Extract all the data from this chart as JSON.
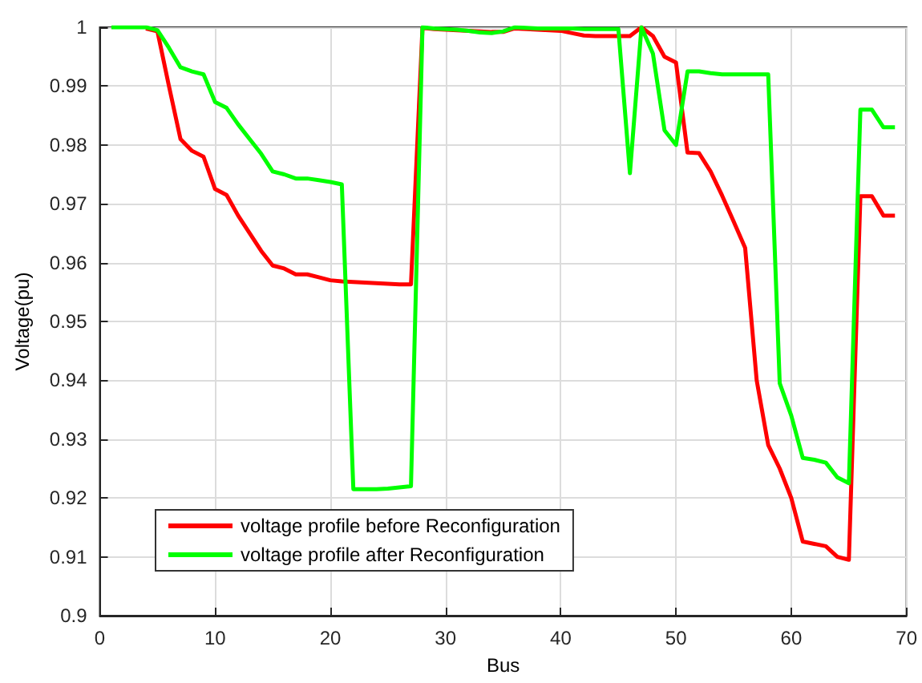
{
  "chart_data": {
    "type": "line",
    "xlabel": "Bus",
    "ylabel": "Voltage(pu)",
    "x": [
      1,
      2,
      3,
      4,
      5,
      6,
      7,
      8,
      9,
      10,
      11,
      12,
      13,
      14,
      15,
      16,
      17,
      18,
      19,
      20,
      21,
      22,
      23,
      24,
      25,
      26,
      27,
      28,
      29,
      30,
      31,
      32,
      33,
      34,
      35,
      36,
      37,
      38,
      39,
      40,
      41,
      42,
      43,
      44,
      45,
      46,
      47,
      48,
      49,
      50,
      51,
      52,
      53,
      54,
      55,
      56,
      57,
      58,
      59,
      60,
      61,
      62,
      63,
      64,
      65,
      66,
      67,
      68,
      69
    ],
    "series": [
      {
        "name": "voltage profile before Reconfiguration",
        "color": "#ff0000",
        "values": [
          null,
          null,
          null,
          0.9998,
          0.9993,
          0.99,
          0.981,
          0.979,
          0.978,
          0.9725,
          0.9715,
          0.968,
          0.965,
          0.962,
          0.9595,
          0.959,
          0.958,
          0.958,
          0.9575,
          0.957,
          0.9568,
          0.9567,
          0.9566,
          0.9565,
          0.9564,
          0.9563,
          0.9563,
          0.9999,
          0.9997,
          0.9996,
          0.9995,
          0.9994,
          0.9993,
          0.9992,
          0.9992,
          0.9998,
          0.9997,
          0.9996,
          0.9995,
          0.9994,
          0.999,
          0.9986,
          0.9985,
          0.9985,
          0.9985,
          0.9985,
          1,
          0.9985,
          0.995,
          0.994,
          0.9787,
          0.9786,
          0.9755,
          0.9714,
          0.967,
          0.9625,
          0.94,
          0.929,
          0.925,
          0.92,
          0.9126,
          0.9122,
          0.9118,
          0.91,
          0.9095,
          0.9713,
          0.9713,
          0.968,
          0.968
        ]
      },
      {
        "name": "voltage profile after Reconfiguration",
        "color": "#00ff00",
        "values": [
          1,
          1,
          1,
          1,
          0.9995,
          0.9965,
          0.9932,
          0.9925,
          0.992,
          0.9873,
          0.9863,
          0.9835,
          0.981,
          0.9785,
          0.9755,
          0.975,
          0.9743,
          0.9743,
          0.974,
          0.9737,
          0.9733,
          0.9215,
          0.9215,
          0.9215,
          0.9216,
          0.9218,
          0.922,
          1,
          0.9998,
          0.9997,
          0.9996,
          0.9994,
          0.9991,
          0.999,
          0.9993,
          1,
          0.9999,
          0.9998,
          0.9998,
          0.9998,
          0.9998,
          0.9997,
          0.9997,
          0.9997,
          0.9997,
          0.9752,
          1,
          0.9955,
          0.9825,
          0.98,
          0.9925,
          0.9925,
          0.9922,
          0.992,
          0.992,
          0.992,
          0.992,
          0.992,
          0.9395,
          0.934,
          0.9268,
          0.9265,
          0.926,
          0.9235,
          0.9225,
          0.986,
          0.986,
          0.983,
          0.983
        ]
      }
    ],
    "xlim": [
      0,
      70
    ],
    "xticks": [
      0,
      10,
      20,
      30,
      40,
      50,
      60,
      70
    ],
    "ylim": [
      0.9,
      1
    ],
    "yticks": [
      0.9,
      0.91,
      0.92,
      0.93,
      0.94,
      0.95,
      0.96,
      0.97,
      0.98,
      0.99,
      1
    ],
    "grid": true,
    "legend": "bottom left",
    "marker": "none",
    "line_style": "solid"
  }
}
